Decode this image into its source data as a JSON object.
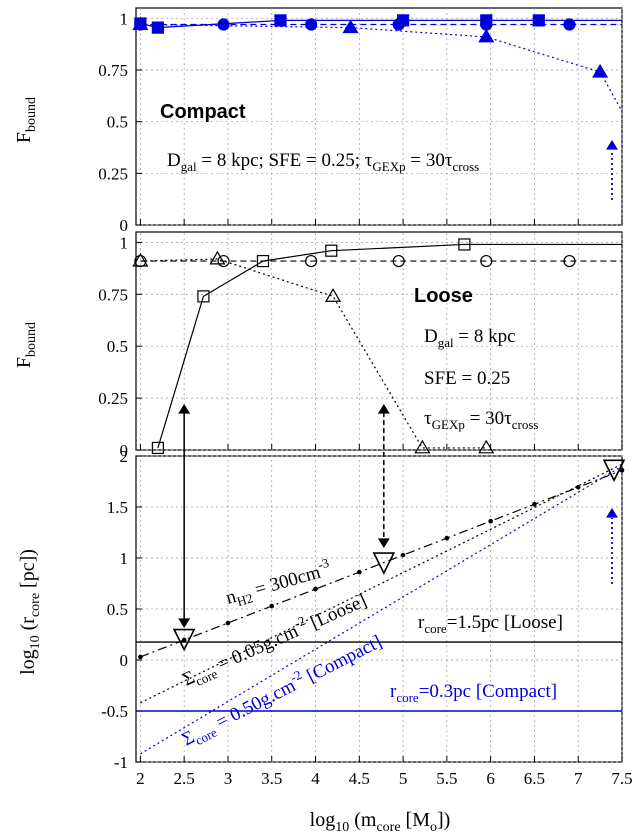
{
  "colors": {
    "black": "#000000",
    "blue": "#0000dd",
    "gray_grid": "#999999"
  },
  "chart_data": [
    {
      "type": "line",
      "panel": "top",
      "ylabel_main": "F",
      "ylabel_sub": "bound",
      "yticks": [
        "0",
        "0.25",
        "0.5",
        "0.75",
        "1"
      ],
      "ylim": [
        0,
        1.05
      ],
      "xlim": [
        1.95,
        7.5
      ],
      "grid": true,
      "label": "Compact",
      "annotation": {
        "d": "D",
        "d_sub": "gal",
        "d_rest": " = 8 kpc; SFE = 0.25; τ",
        "tau_sub": "GEXp",
        "tau_rest": " = 30τ",
        "cross_sub": "cross"
      },
      "series": [
        {
          "marker": "filled-square",
          "style": "solid",
          "color": "#0000dd",
          "x": [
            2.0,
            2.2,
            3.6,
            5.0,
            5.95,
            6.55,
            7.5
          ],
          "y": [
            0.975,
            0.955,
            0.99,
            0.99,
            0.99,
            0.99,
            0.99
          ]
        },
        {
          "marker": "filled-circle",
          "style": "dashed",
          "color": "#0000dd",
          "x": [
            2.0,
            2.95,
            3.95,
            4.95,
            5.95,
            6.9,
            7.5
          ],
          "y": [
            0.97,
            0.97,
            0.97,
            0.97,
            0.97,
            0.97,
            0.97
          ]
        },
        {
          "marker": "filled-triangle",
          "style": "dotted",
          "color": "#0000dd",
          "x": [
            2.0,
            4.4,
            5.95,
            7.25,
            7.5
          ],
          "y": [
            0.97,
            0.955,
            0.91,
            0.74,
            0.55
          ]
        }
      ]
    },
    {
      "type": "line",
      "panel": "middle",
      "ylabel_main": "F",
      "ylabel_sub": "bound",
      "yticks": [
        "0",
        "0.25",
        "0.5",
        "0.75",
        "1"
      ],
      "ylim": [
        0,
        1.05
      ],
      "xlim": [
        1.95,
        7.5
      ],
      "grid": true,
      "label": "Loose",
      "annotation": {
        "d": "D",
        "d_sub": "gal",
        "d_rest": " = 8 kpc",
        "sfe": "SFE = 0.25",
        "tau": "τ",
        "tau_sub": "GEXp",
        "tau_rest": " = 30τ",
        "cross_sub": "cross"
      },
      "series": [
        {
          "marker": "open-square",
          "style": "solid",
          "color": "#000000",
          "x": [
            2.2,
            2.72,
            3.4,
            4.18,
            5.7,
            7.5
          ],
          "y": [
            0.01,
            0.74,
            0.91,
            0.96,
            0.99,
            0.99
          ]
        },
        {
          "marker": "open-circle",
          "style": "dashed",
          "color": "#000000",
          "x": [
            2.0,
            2.95,
            3.95,
            4.95,
            5.95,
            6.9,
            7.5
          ],
          "y": [
            0.91,
            0.91,
            0.91,
            0.91,
            0.91,
            0.91,
            0.91
          ]
        },
        {
          "marker": "open-triangle",
          "style": "dotted",
          "color": "#000000",
          "x": [
            2.0,
            2.88,
            4.2,
            5.22,
            5.95
          ],
          "y": [
            0.91,
            0.92,
            0.74,
            0.01,
            0.01
          ]
        }
      ]
    },
    {
      "type": "line",
      "panel": "bottom",
      "ylabel": "log10 (rcore [pc])",
      "ylabel_parts": {
        "a": "log",
        "a_sub": "10",
        "b": " (r",
        "b_sub": "core",
        "c": " [pc])"
      },
      "xlabel_parts": {
        "a": "log",
        "a_sub": "10",
        "b": " (m",
        "b_sub": "core",
        "c": " [M",
        "c_sub": "o",
        "d": "])"
      },
      "yticks": [
        "-1",
        "-0.5",
        "0",
        "0.5",
        "1",
        "1.5",
        "2"
      ],
      "xticks": [
        "2",
        "2.5",
        "3",
        "3.5",
        "4",
        "4.5",
        "5",
        "5.5",
        "6",
        "6.5",
        "7",
        "7.5"
      ],
      "ylim": [
        -1,
        2
      ],
      "xlim": [
        1.95,
        7.5
      ],
      "grid": true,
      "labels": {
        "nh2": {
          "a": "n",
          "a_sub": "H2",
          "b": " = 300cm",
          "b_sup": "-3"
        },
        "sig_loose": {
          "a": "Σ",
          "a_sub": "core",
          "b": " = 0.05g.cm",
          "b_sup": "-2",
          "c": " [Loose]"
        },
        "sig_compact": {
          "a": "Σ",
          "a_sub": "core",
          "b": " = 0.50g.cm",
          "b_sup": "-2",
          "c": " [Compact]"
        },
        "r_loose": {
          "a": "r",
          "a_sub": "core",
          "b": "=1.5pc [Loose]"
        },
        "r_compact": {
          "a": "r",
          "a_sub": "core",
          "b": "=0.3pc [Compact]"
        }
      },
      "lines": [
        {
          "name": "nH2",
          "style": "dashdot",
          "color": "#000000",
          "x": [
            2.0,
            7.5
          ],
          "y": [
            0.03,
            1.86
          ],
          "points_x": [
            2.0,
            2.5,
            3.0,
            3.5,
            4.0,
            4.5,
            5.0,
            5.5,
            6.0,
            6.5,
            7.0,
            7.5
          ]
        },
        {
          "name": "sigma_loose",
          "style": "dotted",
          "color": "#000000",
          "x": [
            2.0,
            7.5
          ],
          "y": [
            -0.42,
            1.92
          ]
        },
        {
          "name": "sigma_compact",
          "style": "dotted",
          "color": "#0000dd",
          "x": [
            2.0,
            7.5
          ],
          "y": [
            -0.92,
            1.9
          ]
        },
        {
          "name": "r_loose",
          "style": "solid",
          "color": "#000000",
          "x": [
            1.95,
            7.5
          ],
          "y": [
            0.176,
            0.176
          ]
        },
        {
          "name": "r_compact",
          "style": "solid",
          "color": "#0000dd",
          "x": [
            1.95,
            7.5
          ],
          "y": [
            -0.5,
            -0.5
          ]
        }
      ],
      "markers": [
        {
          "marker": "open-down-triangle",
          "x": 2.5,
          "y": 0.2,
          "color": "#000000"
        },
        {
          "marker": "open-down-triangle",
          "x": 4.78,
          "y": 0.95,
          "color": "#000000"
        },
        {
          "marker": "open-down-triangle",
          "x": 7.5,
          "y": 1.86,
          "color": "#000000"
        }
      ]
    }
  ]
}
